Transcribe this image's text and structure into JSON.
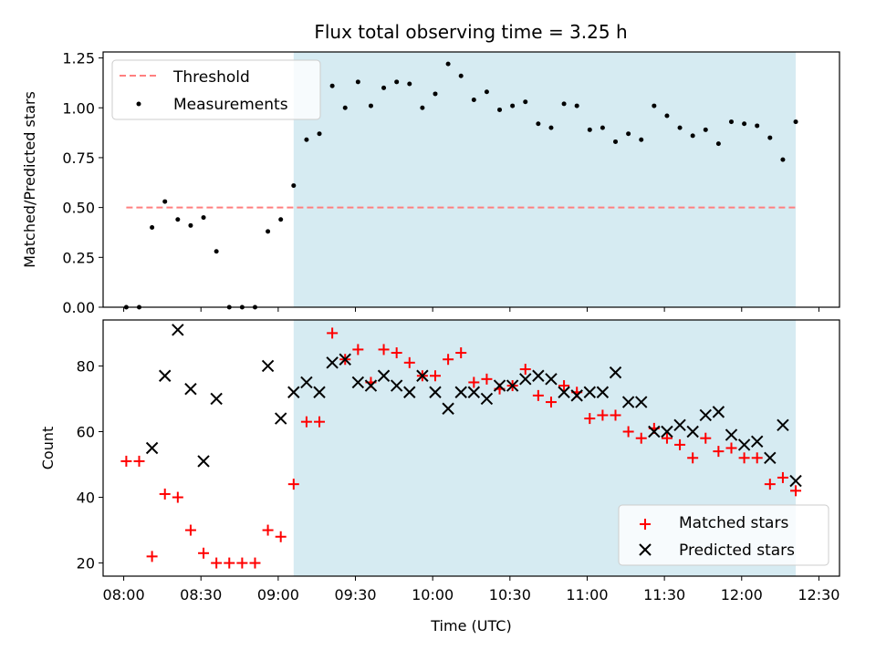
{
  "chart_data": [
    {
      "type": "scatter",
      "title": "Flux total observing time = 3.25 h",
      "xlabel": "",
      "ylabel": "Matched/Predicted stars",
      "ylim": [
        0,
        1.28
      ],
      "yticks": [
        0,
        0.25,
        0.5,
        0.75,
        1.0,
        1.25
      ],
      "ytick_labels": [
        "0.00",
        "0.25",
        "0.50",
        "0.75",
        "1.00",
        "1.25"
      ],
      "grid": false,
      "legend": {
        "placement": "top-left",
        "entries": [
          "Threshold",
          "Measurements"
        ]
      },
      "highlight_span": [
        "09:06",
        "12:21"
      ],
      "threshold": {
        "name": "Threshold",
        "y": 0.5,
        "x_start": "08:01",
        "x_end": "12:21",
        "color": "#ff7f7f"
      },
      "series": [
        {
          "name": "Measurements",
          "color": "#000000",
          "x": [
            "08:01",
            "08:06",
            "08:11",
            "08:16",
            "08:21",
            "08:26",
            "08:31",
            "08:36",
            "08:41",
            "08:46",
            "08:51",
            "08:56",
            "09:01",
            "09:06",
            "09:11",
            "09:16",
            "09:21",
            "09:26",
            "09:31",
            "09:36",
            "09:41",
            "09:46",
            "09:51",
            "09:56",
            "10:01",
            "10:06",
            "10:11",
            "10:16",
            "10:21",
            "10:26",
            "10:31",
            "10:36",
            "10:41",
            "10:46",
            "10:51",
            "10:56",
            "11:01",
            "11:06",
            "11:11",
            "11:16",
            "11:21",
            "11:26",
            "11:31",
            "11:36",
            "11:41",
            "11:46",
            "11:51",
            "11:56",
            "12:01",
            "12:06",
            "12:11",
            "12:16",
            "12:21"
          ],
          "y": [
            0.0,
            0.0,
            0.4,
            0.53,
            0.44,
            0.41,
            0.45,
            0.28,
            0.0,
            0.0,
            0.0,
            0.38,
            0.44,
            0.61,
            0.84,
            0.87,
            1.11,
            1.0,
            1.13,
            1.01,
            1.1,
            1.13,
            1.12,
            1.0,
            1.07,
            1.22,
            1.16,
            1.04,
            1.08,
            0.99,
            1.01,
            1.03,
            0.92,
            0.9,
            1.02,
            1.01,
            0.89,
            0.9,
            0.83,
            0.87,
            0.84,
            1.01,
            0.96,
            0.9,
            0.86,
            0.89,
            0.82,
            0.93,
            0.92,
            0.91,
            0.85,
            0.74,
            0.93
          ]
        }
      ]
    },
    {
      "type": "scatter",
      "title": "",
      "xlabel": "Time (UTC)",
      "ylabel": "Count",
      "ylim": [
        16,
        94
      ],
      "yticks": [
        20,
        40,
        60,
        80
      ],
      "ytick_labels": [
        "20",
        "40",
        "60",
        "80"
      ],
      "xlim": [
        "07:52",
        "12:38"
      ],
      "xticks": [
        "08:00",
        "08:30",
        "09:00",
        "09:30",
        "10:00",
        "10:30",
        "11:00",
        "11:30",
        "12:00",
        "12:30"
      ],
      "grid": false,
      "legend": {
        "placement": "bottom-right",
        "entries": [
          "Matched stars",
          "Predicted stars"
        ]
      },
      "highlight_span": [
        "09:06",
        "12:21"
      ],
      "categories_x": [
        "08:01",
        "08:06",
        "08:11",
        "08:16",
        "08:21",
        "08:26",
        "08:31",
        "08:36",
        "08:41",
        "08:46",
        "08:51",
        "08:56",
        "09:01",
        "09:06",
        "09:11",
        "09:16",
        "09:21",
        "09:26",
        "09:31",
        "09:36",
        "09:41",
        "09:46",
        "09:51",
        "09:56",
        "10:01",
        "10:06",
        "10:11",
        "10:16",
        "10:21",
        "10:26",
        "10:31",
        "10:36",
        "10:41",
        "10:46",
        "10:51",
        "10:56",
        "11:01",
        "11:06",
        "11:11",
        "11:16",
        "11:21",
        "11:26",
        "11:31",
        "11:36",
        "11:41",
        "11:46",
        "11:51",
        "11:56",
        "12:01",
        "12:06",
        "12:11",
        "12:16",
        "12:21"
      ],
      "series": [
        {
          "name": "Matched stars",
          "marker": "plus",
          "color": "#ff0000",
          "y": [
            51,
            51,
            22,
            41,
            40,
            30,
            23,
            20,
            20,
            20,
            20,
            30,
            28,
            44,
            63,
            63,
            90,
            82,
            85,
            75,
            85,
            84,
            81,
            77,
            77,
            82,
            84,
            75,
            76,
            73,
            74,
            79,
            71,
            69,
            74,
            72,
            64,
            65,
            65,
            60,
            58,
            61,
            58,
            56,
            52,
            58,
            54,
            55,
            52,
            52,
            44,
            46,
            42
          ]
        },
        {
          "name": "Predicted stars",
          "marker": "x",
          "color": "#000000",
          "y": [
            null,
            null,
            55,
            77,
            91,
            73,
            51,
            70,
            null,
            null,
            null,
            80,
            64,
            72,
            75,
            72,
            81,
            82,
            75,
            74,
            77,
            74,
            72,
            77,
            72,
            67,
            72,
            72,
            70,
            74,
            74,
            76,
            77,
            76,
            72,
            71,
            72,
            72,
            78,
            69,
            69,
            60,
            60,
            62,
            60,
            65,
            66,
            59,
            56,
            57,
            52,
            62,
            45
          ]
        }
      ]
    }
  ]
}
